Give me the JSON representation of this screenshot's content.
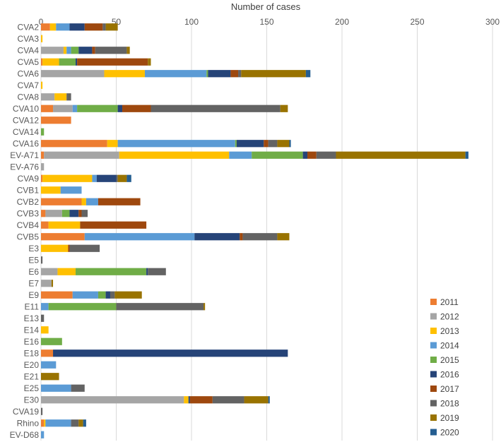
{
  "chart_data": {
    "type": "bar",
    "orientation": "horizontal",
    "stacked": true,
    "title": "",
    "xlabel": "Number of cases",
    "ylabel": "",
    "xlim": [
      0,
      300
    ],
    "xticks": [
      0,
      50,
      100,
      150,
      200,
      250,
      300
    ],
    "grid": true,
    "legend_position": "bottom-right",
    "categories": [
      "CVA2",
      "CVA3",
      "CVA4",
      "CVA5",
      "CVA6",
      "CVA7",
      "CVA8",
      "CVA10",
      "CVA12",
      "CVA14",
      "CVA16",
      "EV-A71",
      "EV-A76",
      "CVA9",
      "CVB1",
      "CVB2",
      "CVB3",
      "CVB4",
      "CVB5",
      "E3",
      "E5",
      "E6",
      "E7",
      "E9",
      "E11",
      "E13",
      "E14",
      "E16",
      "E18",
      "E20",
      "E21",
      "E25",
      "E30",
      "CVA19",
      "Rhino",
      "EV-D68"
    ],
    "series": [
      {
        "name": "2011",
        "color": "#ed7d31",
        "values": [
          6,
          0,
          0,
          1,
          0,
          0,
          0,
          8,
          20,
          0,
          44,
          2,
          0,
          1,
          0,
          27,
          3,
          5,
          29,
          0,
          0,
          0,
          0,
          21,
          0,
          0,
          0,
          0,
          8,
          0,
          0,
          0,
          0,
          0,
          2,
          0
        ]
      },
      {
        "name": "2012",
        "color": "#a5a5a5",
        "values": [
          0,
          0,
          15,
          0,
          42,
          0,
          9,
          13,
          0,
          0,
          0,
          50,
          2,
          0,
          0,
          0,
          11,
          0,
          0,
          0,
          0,
          11,
          7,
          0,
          0,
          0,
          0,
          0,
          0,
          0,
          0,
          0,
          95,
          0,
          0,
          0
        ]
      },
      {
        "name": "2013",
        "color": "#ffc000",
        "values": [
          4,
          1,
          2,
          11,
          27,
          1,
          8,
          0,
          0,
          0,
          7,
          73,
          0,
          33,
          13,
          3,
          0,
          21,
          0,
          18,
          0,
          12,
          0,
          0,
          0,
          0,
          5,
          0,
          0,
          0,
          0,
          0,
          3,
          0,
          1,
          0
        ]
      },
      {
        "name": "2014",
        "color": "#5b9bd5",
        "values": [
          9,
          0,
          3,
          0,
          41,
          0,
          0,
          3,
          0,
          0,
          78,
          15,
          0,
          3,
          14,
          8,
          0,
          0,
          73,
          0,
          0,
          0,
          0,
          17,
          5,
          0,
          0,
          0,
          0,
          10,
          0,
          20,
          0,
          0,
          17,
          2
        ]
      },
      {
        "name": "2015",
        "color": "#70ad47",
        "values": [
          0,
          0,
          5,
          11,
          1,
          0,
          0,
          27,
          0,
          2,
          1,
          34,
          0,
          0,
          0,
          0,
          5,
          0,
          0,
          0,
          0,
          47,
          0,
          5,
          45,
          0,
          0,
          14,
          0,
          0,
          0,
          0,
          0,
          0,
          0,
          0
        ]
      },
      {
        "name": "2016",
        "color": "#264478",
        "values": [
          10,
          0,
          9,
          1,
          15,
          0,
          0,
          3,
          0,
          0,
          18,
          3,
          0,
          13,
          0,
          0,
          6,
          0,
          30,
          0,
          0,
          1,
          0,
          3,
          0,
          0,
          0,
          0,
          156,
          0,
          0,
          0,
          1,
          0,
          0,
          0
        ]
      },
      {
        "name": "2017",
        "color": "#9e480e",
        "values": [
          12,
          0,
          2,
          47,
          5,
          0,
          0,
          19,
          0,
          0,
          3,
          6,
          0,
          0,
          0,
          28,
          2,
          44,
          2,
          1,
          0,
          0,
          0,
          0,
          0,
          0,
          0,
          0,
          0,
          0,
          0,
          0,
          15,
          0,
          0,
          0
        ]
      },
      {
        "name": "2018",
        "color": "#636363",
        "values": [
          2,
          0,
          21,
          0,
          2,
          0,
          3,
          86,
          0,
          0,
          6,
          13,
          0,
          1,
          0,
          0,
          4,
          0,
          23,
          20,
          1,
          12,
          0,
          3,
          58,
          2,
          0,
          0,
          0,
          0,
          0,
          9,
          21,
          1,
          5,
          0
        ]
      },
      {
        "name": "2019",
        "color": "#997300",
        "values": [
          8,
          0,
          2,
          2,
          43,
          0,
          0,
          5,
          0,
          0,
          8,
          86,
          0,
          6,
          0,
          0,
          0,
          0,
          8,
          0,
          0,
          0,
          1,
          18,
          1,
          0,
          0,
          0,
          0,
          0,
          12,
          0,
          16,
          0,
          3,
          0
        ]
      },
      {
        "name": "2020",
        "color": "#255e91",
        "values": [
          0,
          0,
          0,
          0,
          3,
          0,
          0,
          0,
          0,
          0,
          1,
          2,
          0,
          3,
          0,
          0,
          0,
          0,
          0,
          0,
          0,
          0,
          0,
          0,
          0,
          0,
          0,
          0,
          0,
          0,
          0,
          0,
          1,
          0,
          2,
          0
        ]
      }
    ]
  }
}
